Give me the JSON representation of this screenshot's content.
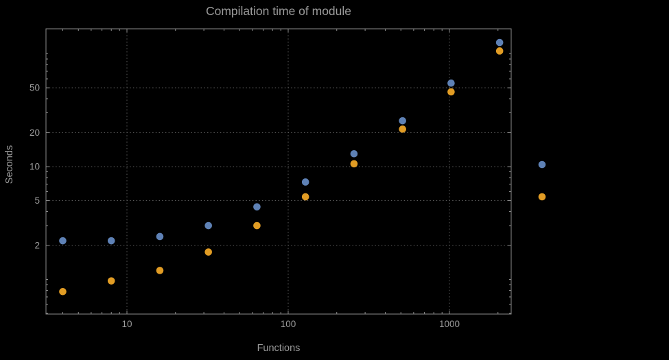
{
  "chart_data": {
    "type": "scatter",
    "title": "Compilation time of module",
    "xlabel": "Functions",
    "ylabel": "Seconds",
    "xscale": "log",
    "yscale": "log",
    "xlim": [
      3.15,
      2415
    ],
    "ylim": [
      0.49,
      167
    ],
    "grid": true,
    "legend_position": "right-outside",
    "x_ticks": [
      10,
      100,
      1000
    ],
    "x_tick_labels": [
      "10",
      "100",
      "1000"
    ],
    "y_ticks": [
      2,
      5,
      10,
      20,
      50
    ],
    "y_tick_labels": [
      "2",
      "5",
      "10",
      "20",
      "50"
    ],
    "x": [
      4,
      8,
      16,
      32,
      64,
      128,
      256,
      512,
      1024,
      2048
    ],
    "series": [
      {
        "name": "blue",
        "color": "#5e81b5",
        "values": [
          2.2,
          2.2,
          2.4,
          3.0,
          4.4,
          7.3,
          13,
          25.5,
          55,
          126
        ]
      },
      {
        "name": "orange",
        "color": "#e19c24",
        "values": [
          0.78,
          0.97,
          1.2,
          1.75,
          3.0,
          5.4,
          10.6,
          21.5,
          46,
          106
        ]
      }
    ],
    "legend": {
      "labels_visible": false,
      "markers": [
        {
          "series": "blue",
          "color": "#5e81b5"
        },
        {
          "series": "orange",
          "color": "#e19c24"
        }
      ]
    },
    "colors": {
      "background": "#000000",
      "text": "#9c9c9c",
      "frame": "#8d8d8d",
      "grid": "#5c5c5c"
    }
  }
}
